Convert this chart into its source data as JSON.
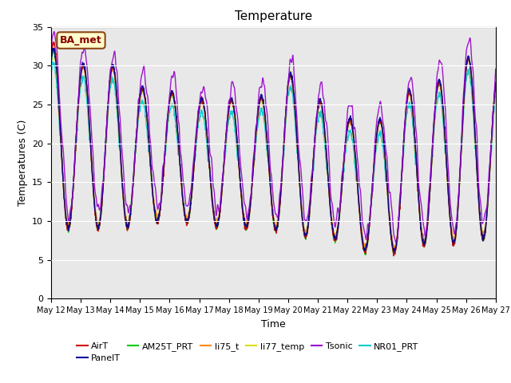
{
  "title": "Temperature",
  "xlabel": "Time",
  "ylabel": "Temperatures (C)",
  "ylim": [
    0,
    35
  ],
  "yticks": [
    0,
    5,
    10,
    15,
    20,
    25,
    30,
    35
  ],
  "x_tick_labels": [
    "May 12",
    "May 13",
    "May 14",
    "May 15",
    "May 16",
    "May 17",
    "May 18",
    "May 19",
    "May 20",
    "May 21",
    "May 22",
    "May 23",
    "May 24",
    "May 25",
    "May 26",
    "May 27"
  ],
  "series_colors": {
    "AirT": "#cc0000",
    "PanelT": "#000099",
    "AM25T_PRT": "#00cc00",
    "li75_t": "#ff8800",
    "li77_temp": "#dddd00",
    "Tsonic": "#9900cc",
    "NR01_PRT": "#00cccc"
  },
  "series_order": [
    "NR01_PRT",
    "li77_temp",
    "li75_t",
    "AM25T_PRT",
    "AirT",
    "PanelT",
    "Tsonic"
  ],
  "annotation_text": "BA_met",
  "bg_color": "#e8e8e8",
  "legend_row1": [
    "AirT",
    "PanelT",
    "AM25T_PRT",
    "li75_t",
    "li77_temp",
    "Tsonic"
  ],
  "legend_row2": [
    "NR01_PRT"
  ]
}
